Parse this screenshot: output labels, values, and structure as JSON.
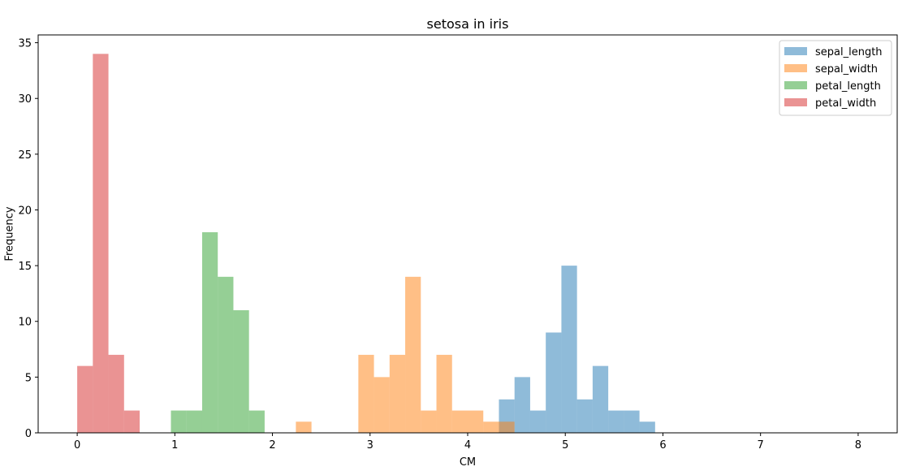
{
  "chart_data": {
    "type": "bar",
    "title": "setosa in iris",
    "xlabel": "CM",
    "ylabel": "Frequency",
    "xlim": [
      -0.4,
      8.4
    ],
    "ylim": [
      0,
      35.7
    ],
    "xticks": [
      "0",
      "1",
      "2",
      "3",
      "4",
      "5",
      "6",
      "7",
      "8"
    ],
    "yticks": [
      "0",
      "5",
      "10",
      "15",
      "20",
      "25",
      "30",
      "35"
    ],
    "legend_position": "top-right",
    "grid": false,
    "bin_width": 0.16,
    "series": [
      {
        "name": "sepal_length",
        "color": "#1f77b4",
        "bins": [
          {
            "x0": 4.32,
            "x1": 4.48,
            "value": 3
          },
          {
            "x0": 4.48,
            "x1": 4.64,
            "value": 5
          },
          {
            "x0": 4.64,
            "x1": 4.8,
            "value": 2
          },
          {
            "x0": 4.8,
            "x1": 4.96,
            "value": 9
          },
          {
            "x0": 4.96,
            "x1": 5.12,
            "value": 15
          },
          {
            "x0": 5.12,
            "x1": 5.28,
            "value": 3
          },
          {
            "x0": 5.28,
            "x1": 5.44,
            "value": 6
          },
          {
            "x0": 5.44,
            "x1": 5.6,
            "value": 2
          },
          {
            "x0": 5.6,
            "x1": 5.76,
            "value": 2
          },
          {
            "x0": 5.76,
            "x1": 5.92,
            "value": 1
          }
        ]
      },
      {
        "name": "sepal_width",
        "color": "#ff7f0e",
        "bins": [
          {
            "x0": 2.24,
            "x1": 2.4,
            "value": 1
          },
          {
            "x0": 2.88,
            "x1": 3.04,
            "value": 7
          },
          {
            "x0": 3.04,
            "x1": 3.2,
            "value": 5
          },
          {
            "x0": 3.2,
            "x1": 3.36,
            "value": 7
          },
          {
            "x0": 3.36,
            "x1": 3.52,
            "value": 14
          },
          {
            "x0": 3.52,
            "x1": 3.68,
            "value": 2
          },
          {
            "x0": 3.68,
            "x1": 3.84,
            "value": 7
          },
          {
            "x0": 3.84,
            "x1": 4.0,
            "value": 2
          },
          {
            "x0": 4.0,
            "x1": 4.16,
            "value": 2
          },
          {
            "x0": 4.16,
            "x1": 4.32,
            "value": 1
          },
          {
            "x0": 4.32,
            "x1": 4.48,
            "value": 1
          }
        ]
      },
      {
        "name": "petal_length",
        "color": "#2ca02c",
        "bins": [
          {
            "x0": 0.96,
            "x1": 1.12,
            "value": 2
          },
          {
            "x0": 1.12,
            "x1": 1.28,
            "value": 2
          },
          {
            "x0": 1.28,
            "x1": 1.44,
            "value": 18
          },
          {
            "x0": 1.44,
            "x1": 1.6,
            "value": 14
          },
          {
            "x0": 1.6,
            "x1": 1.76,
            "value": 11
          },
          {
            "x0": 1.76,
            "x1": 1.92,
            "value": 2
          }
        ]
      },
      {
        "name": "petal_width",
        "color": "#d62728",
        "bins": [
          {
            "x0": 0.0,
            "x1": 0.16,
            "value": 6
          },
          {
            "x0": 0.16,
            "x1": 0.32,
            "value": 34
          },
          {
            "x0": 0.32,
            "x1": 0.48,
            "value": 7
          },
          {
            "x0": 0.48,
            "x1": 0.64,
            "value": 2
          }
        ]
      }
    ]
  }
}
